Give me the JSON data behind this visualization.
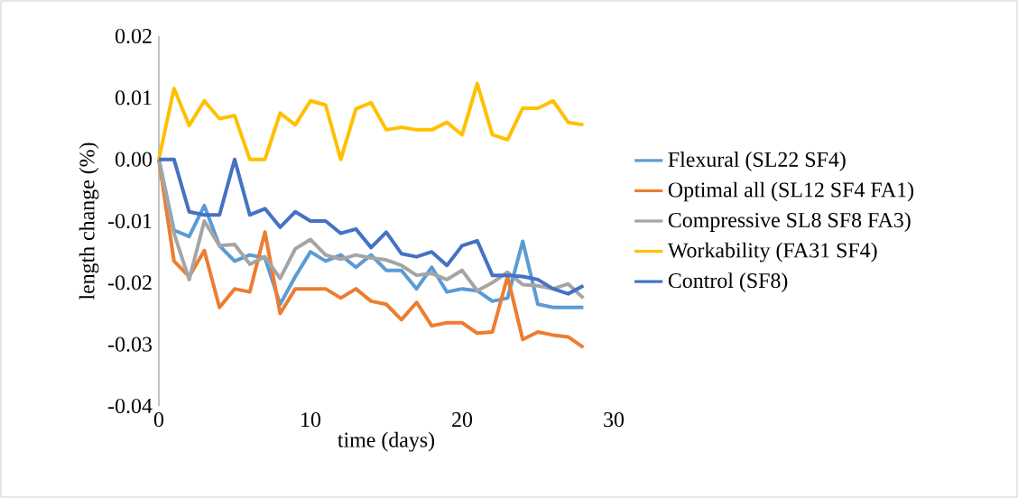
{
  "chart_data": {
    "type": "line",
    "xlabel": "time (days)",
    "ylabel": "length change (%)",
    "x": [
      0,
      1,
      2,
      3,
      4,
      5,
      6,
      7,
      8,
      9,
      10,
      11,
      12,
      13,
      14,
      15,
      16,
      17,
      18,
      19,
      20,
      21,
      22,
      23,
      24,
      25,
      26,
      27,
      28
    ],
    "series": [
      {
        "name": "Flexural (SL22 SF4)",
        "color": "#5b9bd5",
        "values": [
          0,
          -0.0115,
          -0.0125,
          -0.0075,
          -0.014,
          -0.0165,
          -0.0155,
          -0.016,
          -0.0235,
          -0.019,
          -0.015,
          -0.0165,
          -0.0155,
          -0.0175,
          -0.0155,
          -0.018,
          -0.018,
          -0.021,
          -0.0175,
          -0.0215,
          -0.021,
          -0.0213,
          -0.023,
          -0.0225,
          -0.0133,
          -0.0235,
          -0.024,
          -0.024,
          -0.024
        ]
      },
      {
        "name": "Optimal all (SL12 SF4 FA1)",
        "color": "#ed7d31",
        "values": [
          0,
          -0.0165,
          -0.019,
          -0.0148,
          -0.024,
          -0.021,
          -0.0215,
          -0.0118,
          -0.025,
          -0.021,
          -0.021,
          -0.021,
          -0.0225,
          -0.021,
          -0.023,
          -0.0235,
          -0.026,
          -0.0232,
          -0.027,
          -0.0265,
          -0.0265,
          -0.0282,
          -0.028,
          -0.019,
          -0.0292,
          -0.028,
          -0.0285,
          -0.0288,
          -0.0305
        ]
      },
      {
        "name": "Compressive SL8 SF8 FA3)",
        "color": "#a5a5a5",
        "values": [
          0,
          -0.012,
          -0.0195,
          -0.01,
          -0.014,
          -0.0138,
          -0.017,
          -0.0158,
          -0.0193,
          -0.0145,
          -0.013,
          -0.0155,
          -0.0162,
          -0.0155,
          -0.016,
          -0.0163,
          -0.0172,
          -0.0188,
          -0.0185,
          -0.0195,
          -0.018,
          -0.0213,
          -0.02,
          -0.0183,
          -0.0203,
          -0.0205,
          -0.021,
          -0.0202,
          -0.0225
        ]
      },
      {
        "name": "Workability (FA31 SF4)",
        "color": "#ffc000",
        "values": [
          0,
          0.0115,
          0.0055,
          0.0095,
          0.0066,
          0.0071,
          0,
          0,
          0.0075,
          0.0056,
          0.0095,
          0.0088,
          0,
          0.0082,
          0.0092,
          0.0048,
          0.0052,
          0.0048,
          0.0048,
          0.006,
          0.004,
          0.0123,
          0.004,
          0.0032,
          0.0083,
          0.0083,
          0.0095,
          0.006,
          0.0056
        ]
      },
      {
        "name": "Control (SF8)",
        "color": "#4472c4",
        "values": [
          0,
          0,
          -0.0085,
          -0.009,
          -0.009,
          0,
          -0.009,
          -0.008,
          -0.011,
          -0.0085,
          -0.01,
          -0.01,
          -0.012,
          -0.0113,
          -0.0143,
          -0.0118,
          -0.0153,
          -0.0158,
          -0.015,
          -0.0172,
          -0.014,
          -0.0132,
          -0.0188,
          -0.0188,
          -0.019,
          -0.0195,
          -0.021,
          -0.0218,
          -0.0205
        ]
      }
    ],
    "xlim": [
      0,
      30
    ],
    "xticks": [
      0,
      10,
      20,
      30
    ],
    "ylim": [
      -0.04,
      0.02
    ],
    "yticks": [
      {
        "value": -0.04,
        "label": "-0.04"
      },
      {
        "value": -0.03,
        "label": "-0.03"
      },
      {
        "value": -0.02,
        "label": "-0.02"
      },
      {
        "value": -0.01,
        "label": "-0.01"
      },
      {
        "value": 0,
        "label": "0.00"
      },
      {
        "value": 0.01,
        "label": "0.01"
      },
      {
        "value": 0.02,
        "label": "0.02"
      }
    ],
    "grid": false,
    "legend": "right",
    "marker": "none",
    "line_style": "solid"
  }
}
